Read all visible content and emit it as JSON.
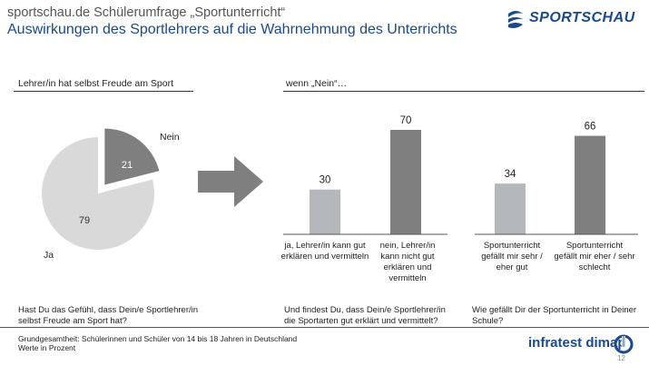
{
  "header": {
    "title": "sportschau.de Schülerumfrage „Sportunterricht“",
    "subtitle": "Auswirkungen des Sportlehrers auf die Wahrnehmung des Unterrichts",
    "logo_text": "SPORTSCHAU"
  },
  "sections": {
    "left_label": "Lehrer/in hat selbst Freude am Sport",
    "right_label": "wenn „Nein“…"
  },
  "chart_data": [
    {
      "type": "pie",
      "labels": [
        "Nein",
        "Ja"
      ],
      "values": [
        21,
        79
      ],
      "colors": [
        "#7f7f7f",
        "#d9d9d9"
      ],
      "question": "Hast Du das Gefühl, dass Dein/e Sportlehrer/in selbst Freude am Sport hat?"
    },
    {
      "type": "bar",
      "categories": [
        "ja, Lehrer/in kann gut erklären und vermitteln",
        "nein, Lehrer/in kann nicht gut erklären und vermitteln"
      ],
      "values": [
        30,
        70
      ],
      "colors": [
        "#b4b8bc",
        "#7f7f7f"
      ],
      "question": "Und findest Du, dass Dein/e Sportlehrer/in die Sportarten gut erklärt und vermittelt?"
    },
    {
      "type": "bar",
      "categories": [
        "Sportunterricht gefällt mir sehr / eher gut",
        "Sportunterricht gefällt mir eher / sehr schlecht"
      ],
      "values": [
        34,
        66
      ],
      "colors": [
        "#b4b8bc",
        "#7f7f7f"
      ],
      "question": "Wie gefällt Dir der Sportunterricht in Deiner Schule?"
    }
  ],
  "footer": {
    "base": "Grundgesamtheit: Schülerinnen und Schüler von 14 bis 18 Jahren in Deutschland",
    "unit": "Werte in Prozent",
    "brand": "infratest dimap",
    "page": "12"
  },
  "colors": {
    "accent": "#1a4a8c",
    "dark_bar": "#7f7f7f",
    "light_bar": "#b4b8bc",
    "pie_light": "#d9d9d9"
  }
}
